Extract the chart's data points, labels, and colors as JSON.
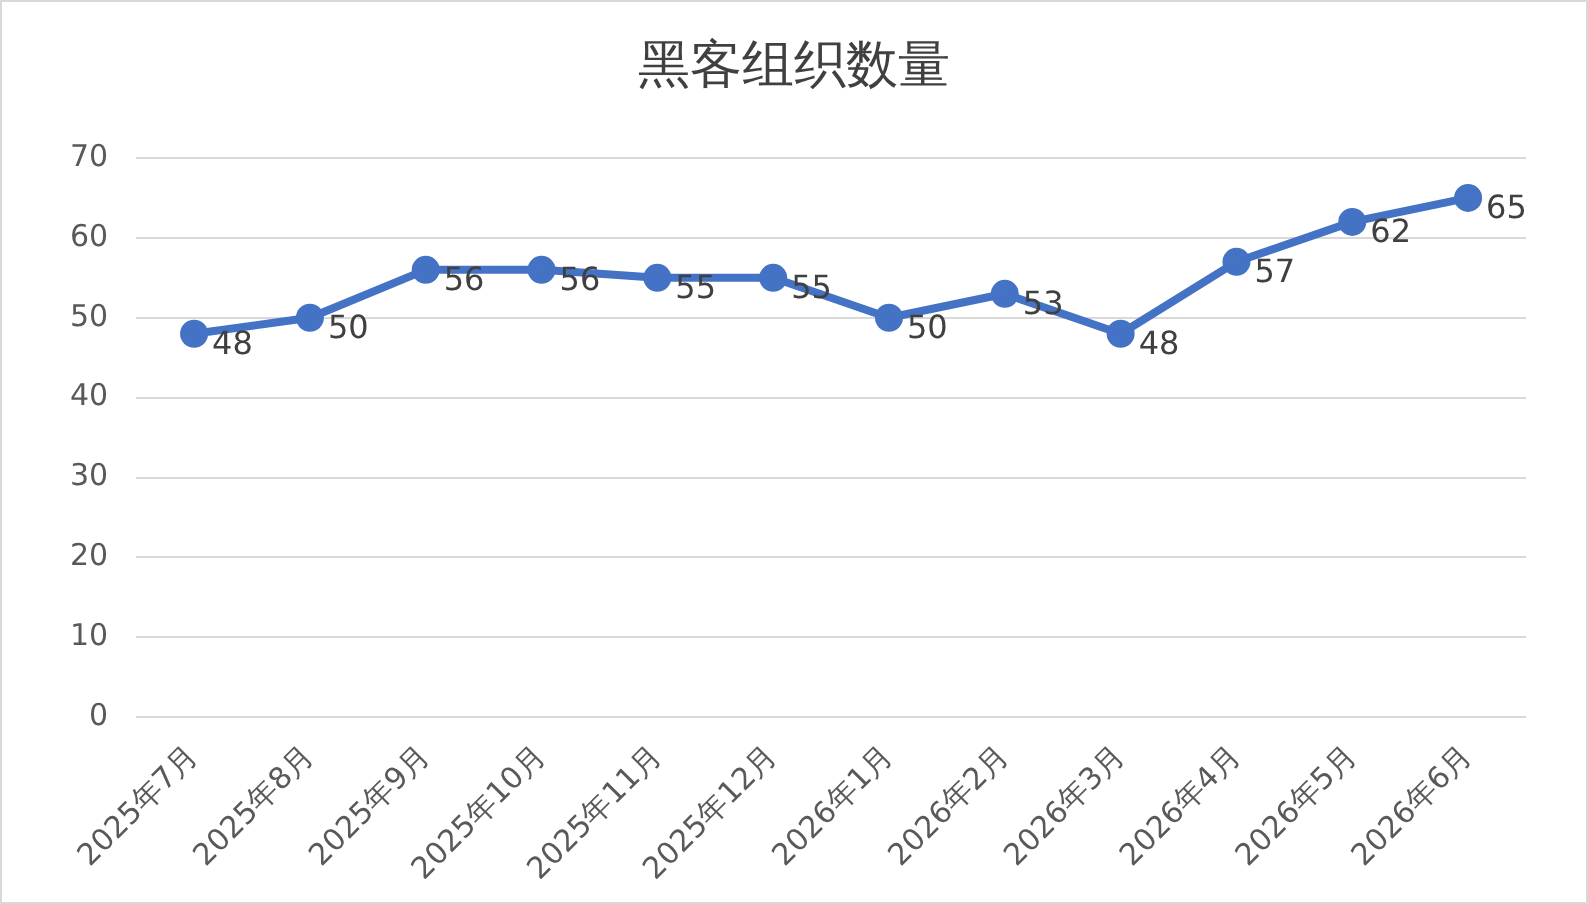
{
  "chart_data": {
    "type": "line",
    "title": "黑客组织数量",
    "categories": [
      "2025年7月",
      "2025年8月",
      "2025年9月",
      "2025年10月",
      "2025年11月",
      "2025年12月",
      "2026年1月",
      "2026年2月",
      "2026年3月",
      "2026年4月",
      "2026年5月",
      "2026年6月"
    ],
    "series": [
      {
        "color": "#4472c4",
        "values": [
          48,
          50,
          56,
          56,
          55,
          55,
          50,
          53,
          48,
          57,
          62,
          65
        ]
      }
    ],
    "ylim": [
      0,
      70
    ],
    "yticks": [
      0,
      10,
      20,
      30,
      40,
      50,
      60,
      70
    ],
    "grid": "y",
    "legend": false,
    "marker": "circle",
    "line_style": "solid",
    "data_labels": true
  }
}
